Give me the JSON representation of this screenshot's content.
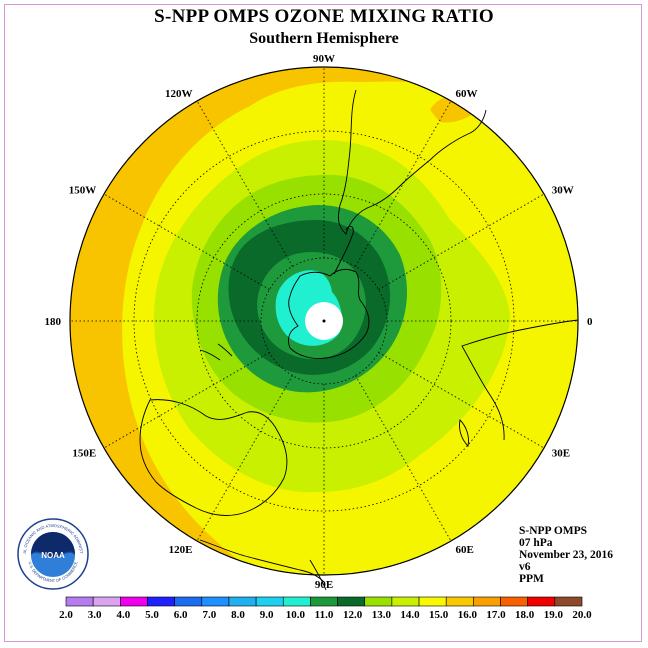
{
  "title": "S-NPP OMPS OZONE MIXING RATIO",
  "subtitle": "Southern Hemisphere",
  "info": {
    "instrument": "S-NPP OMPS",
    "level": "07 hPa",
    "date": "November 23, 2016",
    "version": "v6",
    "units": "PPM"
  },
  "logo": {
    "text": "NOAA",
    "ring_text": "NATIONAL OCEANIC AND ATMOSPHERIC ADMINISTRATION",
    "ring_text_bottom": "U.S. DEPARTMENT OF COMMERCE"
  },
  "longitude_labels": [
    {
      "label": "0",
      "lon": 0
    },
    {
      "label": "30W",
      "lon": -30
    },
    {
      "label": "60W",
      "lon": -60
    },
    {
      "label": "90W",
      "lon": -90
    },
    {
      "label": "120W",
      "lon": -120
    },
    {
      "label": "150W",
      "lon": -150
    },
    {
      "label": "180",
      "lon": 180
    },
    {
      "label": "150E",
      "lon": 150
    },
    {
      "label": "120E",
      "lon": 120
    },
    {
      "label": "90E",
      "lon": 90
    },
    {
      "label": "60E",
      "lon": 60
    },
    {
      "label": "30E",
      "lon": 30
    }
  ],
  "colorbar": {
    "labels": [
      "2.0",
      "3.0",
      "4.0",
      "5.0",
      "6.0",
      "7.0",
      "8.0",
      "9.0",
      "10.0",
      "11.0",
      "12.0",
      "13.0",
      "14.0",
      "15.0",
      "16.0",
      "17.0",
      "18.0",
      "19.0",
      "20.0"
    ],
    "colors": [
      "#b57cf0",
      "#d9a3f0",
      "#ee00ee",
      "#2020ff",
      "#1a6cf0",
      "#1e90ff",
      "#20b0f0",
      "#20d0f0",
      "#20f0d0",
      "#1a9a3a",
      "#0a6a2a",
      "#9ae000",
      "#c8f000",
      "#f8f800",
      "#f8c800",
      "#f8a000",
      "#f86000",
      "#f00000",
      "#8c4a2a"
    ]
  },
  "map_colors": {
    "background": "#f5f500",
    "orange_band": "#f8c400",
    "yellow_green": "#c8f000",
    "light_green": "#98e000",
    "green": "#1e9a3c",
    "dark_green": "#0a6a2a",
    "cyan": "#20f0d0",
    "pole": "#ffffff"
  }
}
